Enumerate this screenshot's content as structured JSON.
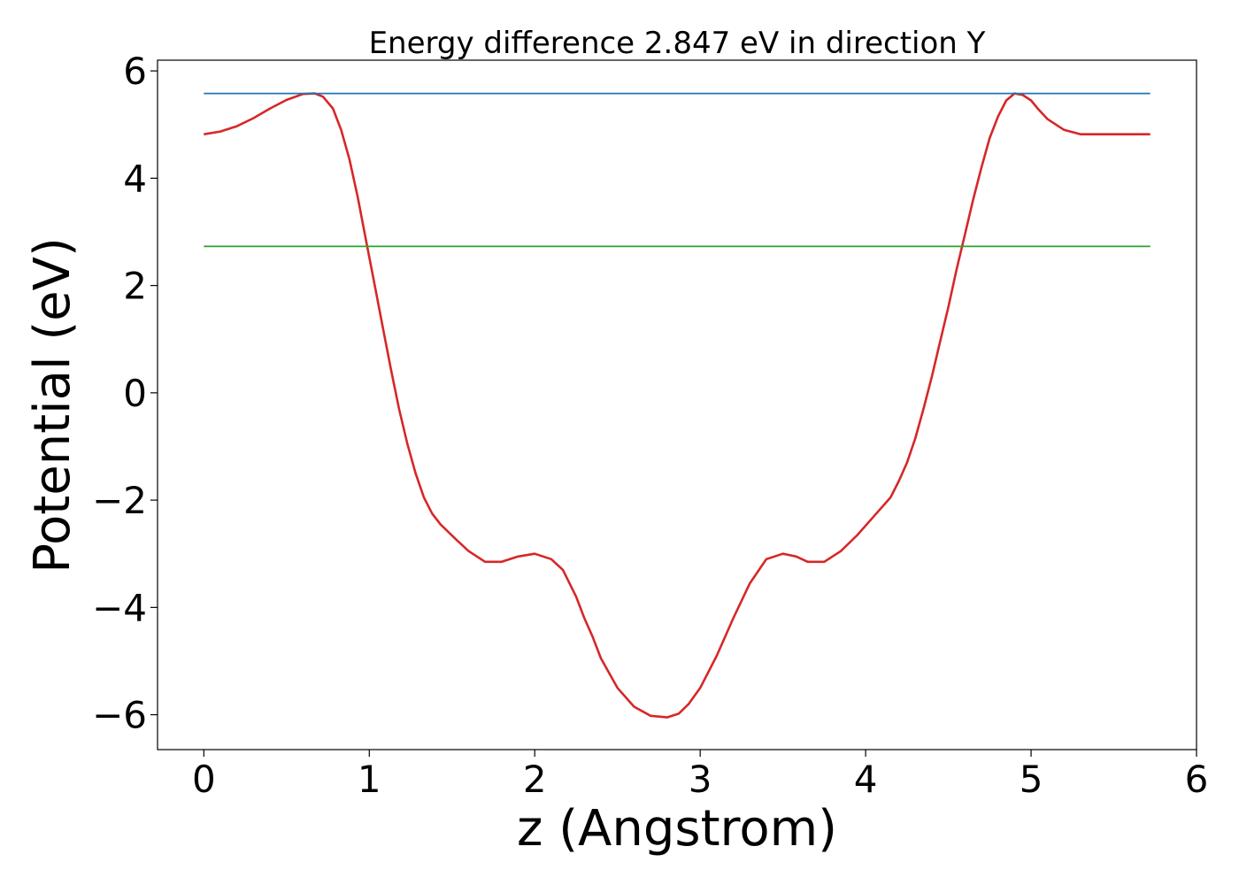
{
  "chart_data": {
    "type": "line",
    "title": "Energy difference 2.847 eV in direction Y",
    "xlabel": "z (Angstrom)",
    "ylabel": "Potential (eV)",
    "xlim": [
      -0.28,
      6.0
    ],
    "ylim": [
      -6.65,
      6.2
    ],
    "x_ticks": [
      0,
      1,
      2,
      3,
      4,
      5,
      6
    ],
    "x_tick_labels": [
      "0",
      "1",
      "2",
      "3",
      "4",
      "5",
      "6"
    ],
    "y_ticks": [
      -6,
      -4,
      -2,
      0,
      2,
      4,
      6
    ],
    "y_tick_labels": [
      "−6",
      "−4",
      "−2",
      "0",
      "2",
      "4",
      "6"
    ],
    "grid": false,
    "legend": "none",
    "series": [
      {
        "color": "#d62728",
        "x": [
          0.0,
          0.1,
          0.2,
          0.3,
          0.4,
          0.5,
          0.6,
          0.67,
          0.72,
          0.78,
          0.83,
          0.88,
          0.93,
          0.98,
          1.03,
          1.08,
          1.13,
          1.18,
          1.23,
          1.28,
          1.33,
          1.38,
          1.43,
          1.48,
          1.53,
          1.6,
          1.7,
          1.8,
          1.9,
          2.0,
          2.1,
          2.17,
          2.25,
          2.3,
          2.35,
          2.4,
          2.5,
          2.6,
          2.7,
          2.8,
          2.87,
          2.93,
          3.0,
          3.1,
          3.2,
          3.3,
          3.4,
          3.5,
          3.58,
          3.65,
          3.75,
          3.85,
          3.95,
          4.05,
          4.15,
          4.2,
          4.25,
          4.3,
          4.35,
          4.4,
          4.45,
          4.5,
          4.55,
          4.6,
          4.65,
          4.7,
          4.75,
          4.8,
          4.85,
          4.9,
          4.95,
          5.0,
          5.04,
          5.1,
          5.2,
          5.3,
          5.4,
          5.5,
          5.6,
          5.72
        ],
        "y": [
          4.82,
          4.87,
          4.97,
          5.12,
          5.3,
          5.46,
          5.57,
          5.58,
          5.52,
          5.3,
          4.9,
          4.35,
          3.65,
          2.85,
          2.05,
          1.25,
          0.45,
          -0.3,
          -0.95,
          -1.5,
          -1.95,
          -2.25,
          -2.45,
          -2.6,
          -2.75,
          -2.95,
          -3.15,
          -3.15,
          -3.05,
          -3.0,
          -3.1,
          -3.3,
          -3.8,
          -4.2,
          -4.55,
          -4.95,
          -5.5,
          -5.85,
          -6.02,
          -6.05,
          -5.98,
          -5.8,
          -5.5,
          -4.9,
          -4.2,
          -3.55,
          -3.1,
          -3.0,
          -3.05,
          -3.15,
          -3.15,
          -2.95,
          -2.65,
          -2.3,
          -1.95,
          -1.65,
          -1.3,
          -0.85,
          -0.3,
          0.3,
          0.95,
          1.6,
          2.3,
          2.95,
          3.6,
          4.2,
          4.75,
          5.15,
          5.45,
          5.58,
          5.55,
          5.45,
          5.3,
          5.1,
          4.9,
          4.82,
          4.82,
          4.82,
          4.82,
          4.82
        ]
      },
      {
        "color": "#1f77b4",
        "x": [
          0.0,
          5.72
        ],
        "y": [
          5.58,
          5.58
        ]
      },
      {
        "color": "#2ca02c",
        "x": [
          0.0,
          5.72
        ],
        "y": [
          2.73,
          2.73
        ]
      }
    ]
  }
}
